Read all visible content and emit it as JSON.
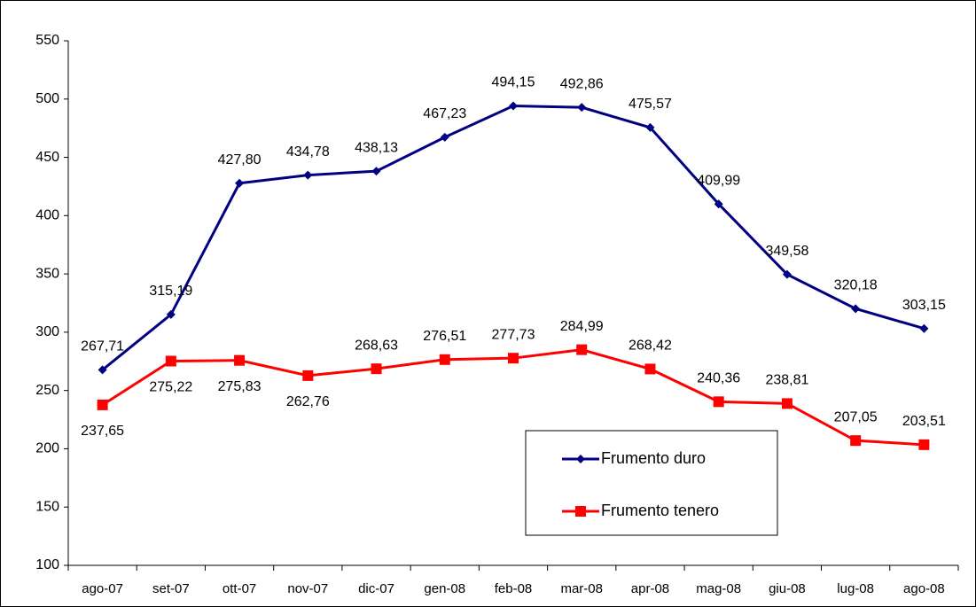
{
  "chart_data": {
    "type": "line",
    "categories": [
      "ago-07",
      "set-07",
      "ott-07",
      "nov-07",
      "dic-07",
      "gen-08",
      "feb-08",
      "mar-08",
      "apr-08",
      "mag-08",
      "giu-08",
      "lug-08",
      "ago-08"
    ],
    "series": [
      {
        "name": "Frumento duro",
        "color": "#000080",
        "marker": "diamond",
        "values": [
          267.71,
          315.19,
          427.8,
          434.78,
          438.13,
          467.23,
          494.15,
          492.86,
          475.57,
          409.99,
          349.58,
          320.18,
          303.15
        ],
        "value_labels": [
          "267,71",
          "315,19",
          "427,80",
          "434,78",
          "438,13",
          "467,23",
          "494,15",
          "492,86",
          "475,57",
          "409,99",
          "349,58",
          "320,18",
          "303,15"
        ]
      },
      {
        "name": "Frumento tenero",
        "color": "#ff0000",
        "marker": "square",
        "values": [
          237.65,
          275.22,
          275.83,
          262.76,
          268.63,
          276.51,
          277.73,
          284.99,
          268.42,
          240.36,
          238.81,
          207.05,
          203.51
        ],
        "value_labels": [
          "237,65",
          "275,22",
          "275,83",
          "262,76",
          "268,63",
          "276,51",
          "277,73",
          "284,99",
          "268,42",
          "240,36",
          "238,81",
          "207,05",
          "203,51"
        ]
      }
    ],
    "ylim": [
      100,
      550
    ],
    "yticks": [
      100,
      150,
      200,
      250,
      300,
      350,
      400,
      450,
      500,
      550
    ],
    "grid": false
  }
}
